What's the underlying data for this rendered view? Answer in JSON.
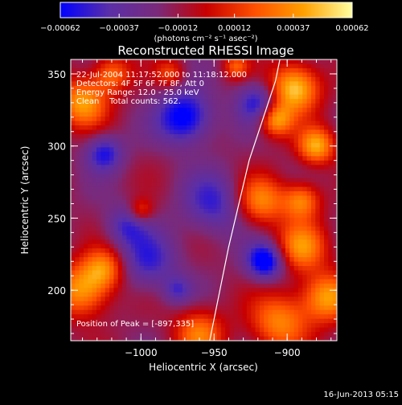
{
  "chart_data": {
    "type": "heatmap",
    "title": "Reconstructed RHESSI Image",
    "xlabel": "Heliocentric X (arcsec)",
    "ylabel": "Heliocentric Y (arcsec)",
    "xlim": [
      -1048,
      -866
    ],
    "ylim": [
      165,
      360
    ],
    "x_ticks": [
      -1000,
      -950,
      -900
    ],
    "y_ticks": [
      200,
      250,
      300,
      350
    ],
    "x_tick_labels": [
      "−1000",
      "−950",
      "−900"
    ],
    "y_tick_labels": [
      "200",
      "250",
      "300",
      "350"
    ],
    "colorbar": {
      "range": [
        -0.00062,
        0.00062
      ],
      "ticks": [
        -0.00062,
        -0.00037,
        -0.00012,
        0.00012,
        0.00037,
        0.00062
      ],
      "tick_labels": [
        "−0.00062",
        "−0.00037",
        "−0.00012",
        "0.00012",
        "0.00037",
        "0.00062"
      ],
      "units": "(photons cm⁻² s⁻¹ asec⁻²)",
      "colors": [
        "#0000ff",
        "#5a2fa8",
        "#7a2a7a",
        "#c80000",
        "#ff5000",
        "#ffa000",
        "#ffffa0"
      ]
    },
    "info_lines": [
      "22-Jul-2004 11:17:52.000 to 11:18:12.000",
      "Detectors: 4F 5F 6F 7F 8F, Att 0",
      "Energy Range: 12.0 - 25.0 keV",
      "Clean    Total counts: 562."
    ],
    "peak_label": "Position of Peak = [-897,335]",
    "peak": [
      -897,
      335
    ],
    "limb_curve": [
      [
        -953,
        165
      ],
      [
        -940,
        230
      ],
      [
        -926,
        290
      ],
      [
        -908,
        345
      ],
      [
        -905,
        360
      ]
    ],
    "features": [
      {
        "x": -895,
        "y": 340,
        "sigma": 12,
        "amp": 1.0
      },
      {
        "x": -880,
        "y": 300,
        "sigma": 9,
        "amp": 0.85
      },
      {
        "x": -908,
        "y": 318,
        "sigma": 8,
        "amp": 0.8
      },
      {
        "x": -918,
        "y": 262,
        "sigma": 12,
        "amp": 0.7
      },
      {
        "x": -890,
        "y": 262,
        "sigma": 9,
        "amp": 0.7
      },
      {
        "x": -890,
        "y": 230,
        "sigma": 12,
        "amp": 0.72
      },
      {
        "x": -873,
        "y": 195,
        "sigma": 12,
        "amp": 0.8
      },
      {
        "x": -905,
        "y": 178,
        "sigma": 14,
        "amp": 0.7
      },
      {
        "x": -1040,
        "y": 200,
        "sigma": 13,
        "amp": 0.8
      },
      {
        "x": -1025,
        "y": 215,
        "sigma": 10,
        "amp": 0.65
      },
      {
        "x": -1040,
        "y": 330,
        "sigma": 12,
        "amp": 0.8
      },
      {
        "x": -1020,
        "y": 350,
        "sigma": 9,
        "amp": 0.6
      },
      {
        "x": -980,
        "y": 350,
        "sigma": 7,
        "amp": 0.45
      },
      {
        "x": -960,
        "y": 170,
        "sigma": 12,
        "amp": 0.65
      },
      {
        "x": -935,
        "y": 355,
        "sigma": 6,
        "amp": 0.5
      },
      {
        "x": -1000,
        "y": 255,
        "sigma": 6,
        "amp": 0.45
      },
      {
        "x": -970,
        "y": 320,
        "sigma": 13,
        "amp": -0.8
      },
      {
        "x": -1025,
        "y": 295,
        "sigma": 9,
        "amp": -0.6
      },
      {
        "x": -920,
        "y": 330,
        "sigma": 10,
        "amp": -0.6
      },
      {
        "x": -915,
        "y": 220,
        "sigma": 9,
        "amp": -0.85
      },
      {
        "x": -950,
        "y": 260,
        "sigma": 15,
        "amp": -0.5
      },
      {
        "x": -995,
        "y": 220,
        "sigma": 14,
        "amp": -0.5
      },
      {
        "x": -975,
        "y": 200,
        "sigma": 7,
        "amp": -0.4
      },
      {
        "x": -1010,
        "y": 245,
        "sigma": 10,
        "amp": -0.45
      }
    ]
  },
  "footer": {
    "timestamp": "16-Jun-2013 05:15"
  }
}
